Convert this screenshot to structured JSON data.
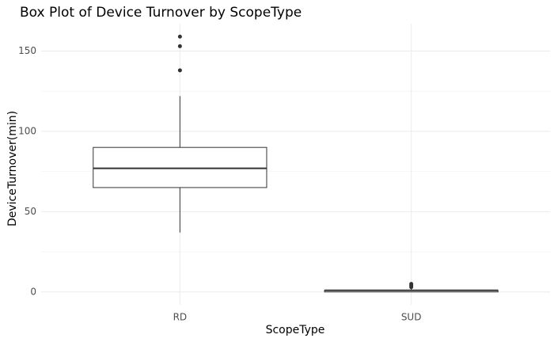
{
  "chart_data": {
    "type": "box",
    "title": "Box Plot of Device Turnover by ScopeType",
    "x_label": "ScopeType",
    "y_label": "DeviceTurnover(min)",
    "categories": [
      "RD",
      "SUD"
    ],
    "boxes": [
      {
        "min": 37,
        "q1": 65,
        "median": 77,
        "q3": 90,
        "max": 122,
        "outliers": [
          159,
          153,
          138
        ]
      },
      {
        "min": 0,
        "q1": 0,
        "median": 1,
        "q3": 1,
        "max": 2,
        "outliers": [
          3,
          4,
          5
        ]
      }
    ],
    "color": "#333333",
    "ylim": [
      -8,
      167
    ],
    "yticks": [
      0,
      50,
      100,
      150
    ],
    "yminorticks": [
      25,
      75,
      125
    ],
    "grid": true
  }
}
